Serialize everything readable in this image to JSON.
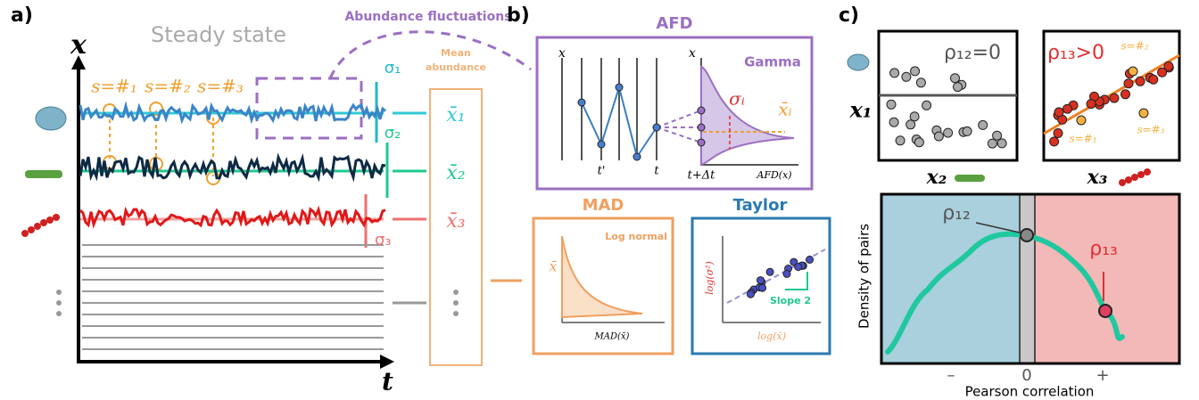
{
  "panel_a": {
    "label": "a)",
    "title": "Steady state",
    "y_axis": "x",
    "x_axis": "t",
    "annotation": "Abundance fluctuations",
    "samples": [
      "s=#₁",
      "s=#₂",
      "s=#₃"
    ],
    "sigmas": [
      "σ₁",
      "σ₂",
      "σ₃"
    ],
    "mean_label": [
      "Mean",
      "abundance"
    ],
    "means": [
      "x̄₁",
      "x̄₂",
      "x̄₃"
    ]
  },
  "panel_b": {
    "label": "b)",
    "afd": {
      "title": "AFD",
      "distribution": "Gamma",
      "axis_left": "x",
      "axis_right": "x",
      "times": [
        "t'",
        "t",
        "t+Δt"
      ],
      "x_axis": "AFD(x)",
      "sigma": "σᵢ",
      "mean": "x̄ᵢ"
    },
    "mad": {
      "title": "MAD",
      "distribution": "Log normal",
      "y_axis": "x̄",
      "x_axis": "MAD(x̄)"
    },
    "taylor": {
      "title": "Taylor",
      "y_axis": "log(σ²)",
      "x_axis": "log(x̄)",
      "slope": "Slope 2"
    }
  },
  "panel_c": {
    "label": "c)",
    "scatter_1": {
      "title": "ρ₁₂=0",
      "y_axis": "x₁",
      "x_axis": "x₂"
    },
    "scatter_2": {
      "title": "ρ₁₃>0",
      "x_axis": "x₃",
      "samples": [
        "s=#₂",
        "s=#₁",
        "s=#₃"
      ]
    },
    "density": {
      "y_axis": "Density of pairs",
      "rho_12": "ρ₁₂",
      "rho_13": "ρ₁₃",
      "ticks": [
        "–",
        "0",
        "+"
      ],
      "x_axis": "Pearson correlation"
    }
  }
}
